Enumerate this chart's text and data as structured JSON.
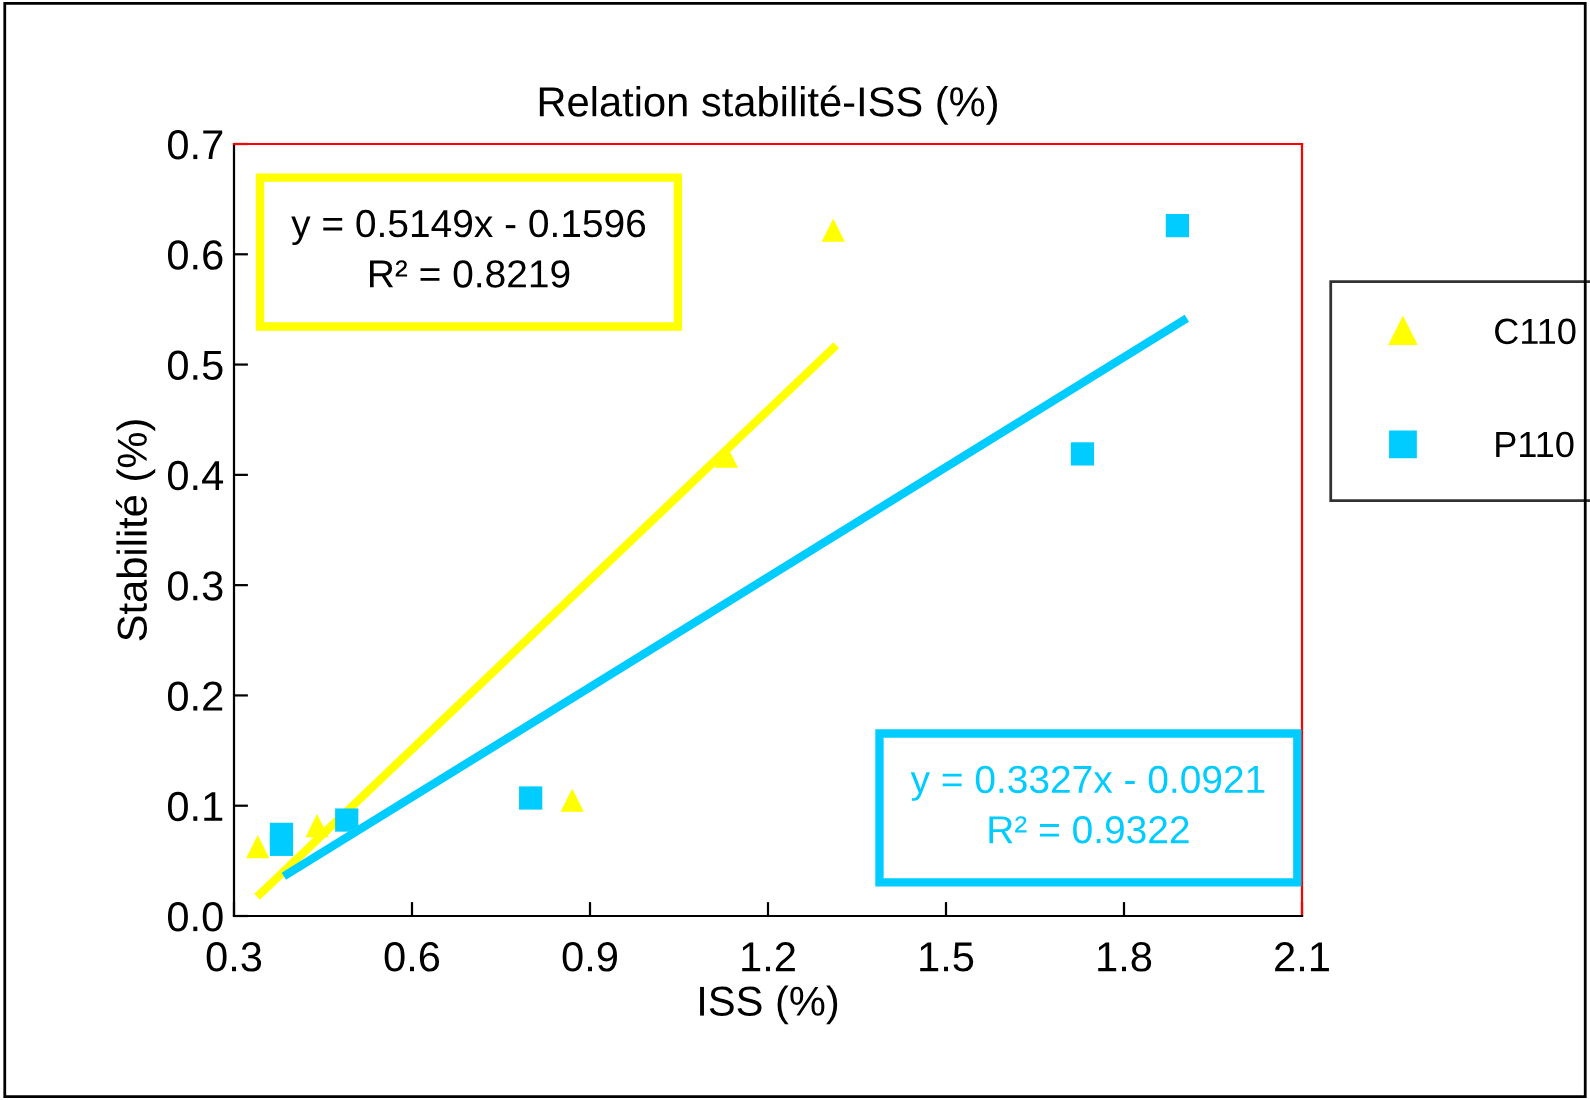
{
  "chart_data": {
    "type": "scatter",
    "title": "Relation stabilité-ISS (%)",
    "xlabel": "ISS (%)",
    "ylabel": "Stabilité (%)",
    "xlim": [
      0.3,
      2.1
    ],
    "xticks": [
      0.3,
      0.6,
      0.9,
      1.2,
      1.5,
      1.8,
      2.1
    ],
    "ylim": [
      0.0,
      0.7
    ],
    "yticks": [
      {
        "value": 0,
        "label": "0.0"
      },
      0.1,
      0.2,
      0.3,
      0.4,
      0.5,
      0.6,
      0.7
    ],
    "grid": false,
    "legend": "right",
    "series": [
      {
        "name": "C110",
        "color": "#ffff00",
        "marker": "triangle",
        "x": [
          0.34,
          0.44,
          0.87,
          1.13,
          1.31
        ],
        "values": [
          0.063,
          0.082,
          0.105,
          0.417,
          0.622
        ]
      },
      {
        "name": "P110",
        "color": "#00ccff",
        "marker": "square",
        "x": [
          0.38,
          0.38,
          0.49,
          0.8,
          1.73,
          1.89
        ],
        "values": [
          0.074,
          0.065,
          0.087,
          0.107,
          0.419,
          0.626
        ]
      },
      {
        "type": "line",
        "color": "#ffff00",
        "x": [
          0.344,
          1.31
        ],
        "values": [
          0.02,
          0.515
        ]
      },
      {
        "type": "line",
        "color": "#00ccff",
        "x": [
          0.39,
          1.9
        ],
        "values": [
          0.038,
          0.54
        ]
      }
    ],
    "annotations": [
      "y = 0.5149x - 0.1596\nR² = 0.8219",
      "y = 0.3327x - 0.0921\nR² = 0.9322"
    ]
  }
}
